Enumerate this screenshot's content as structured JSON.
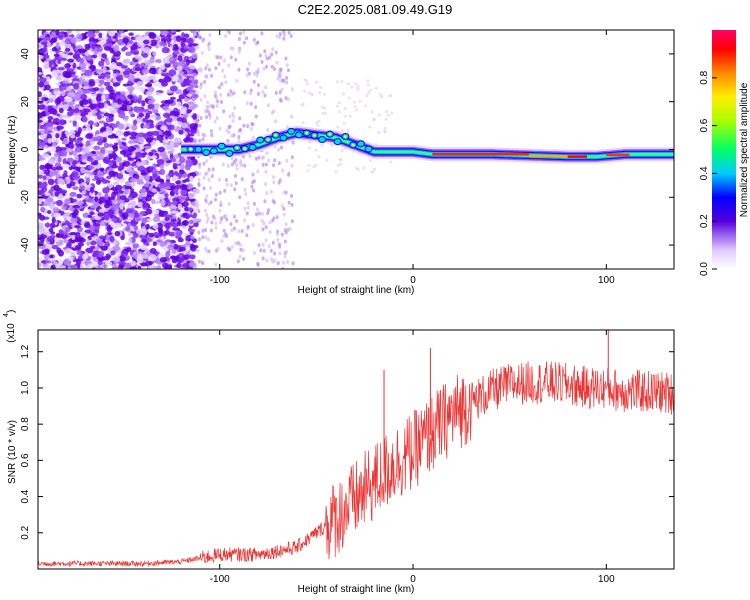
{
  "title": "C2E2.2025.081.09.49.G19",
  "chart_data": [
    {
      "type": "heatmap",
      "xlabel": "Height of straight line (km)",
      "ylabel": "Frequency (Hz)",
      "xlim": [
        -194,
        135
      ],
      "ylim": [
        -50,
        50
      ],
      "xticks": [
        -100,
        0,
        100
      ],
      "yticks": [
        -40,
        -20,
        0,
        20,
        40
      ],
      "colorbar": {
        "label": "Normalized spectral amplitude",
        "range": [
          0,
          1
        ],
        "ticks": [
          0.0,
          0.2,
          0.4,
          0.6,
          0.8
        ]
      },
      "ridge": {
        "x": [
          -120,
          -110,
          -100,
          -90,
          -80,
          -70,
          -60,
          -50,
          -40,
          -30,
          -20,
          -10,
          0,
          10,
          40,
          80,
          95,
          110,
          135
        ],
        "freq": [
          0,
          0,
          0,
          0,
          2,
          5,
          7,
          6,
          5,
          2,
          -1,
          -1,
          -1,
          -2,
          -2,
          -3,
          -3,
          -2,
          -2
        ]
      }
    },
    {
      "type": "line",
      "xlabel": "Height of straight line (km)",
      "ylabel": "SNR (10 * v/v)",
      "y_multiplier": "(x10^4)",
      "xlim": [
        -194,
        135
      ],
      "ylim": [
        0,
        1.32
      ],
      "xticks": [
        -100,
        0,
        100
      ],
      "yticks": [
        0.2,
        0.4,
        0.6,
        0.8,
        1.0,
        1.2
      ],
      "series": [
        {
          "color": "#ee3333",
          "x": [
            -194,
            -180,
            -160,
            -140,
            -120,
            -110,
            -100,
            -90,
            -80,
            -70,
            -60,
            -50,
            -40,
            -30,
            -20,
            -10,
            0,
            10,
            20,
            30,
            40,
            50,
            60,
            70,
            80,
            90,
            100,
            110,
            120,
            135
          ],
          "y": [
            0.03,
            0.03,
            0.03,
            0.03,
            0.04,
            0.06,
            0.08,
            0.08,
            0.08,
            0.1,
            0.12,
            0.2,
            0.28,
            0.38,
            0.48,
            0.58,
            0.65,
            0.75,
            0.85,
            0.92,
            0.98,
            1.02,
            1.03,
            1.03,
            1.02,
            1.0,
            1.0,
            0.98,
            0.98,
            0.97
          ]
        }
      ],
      "spikes": [
        {
          "x": -15,
          "y": 1.1
        },
        {
          "x": 9,
          "y": 1.22
        },
        {
          "x": 101,
          "y": 1.32
        }
      ]
    }
  ]
}
